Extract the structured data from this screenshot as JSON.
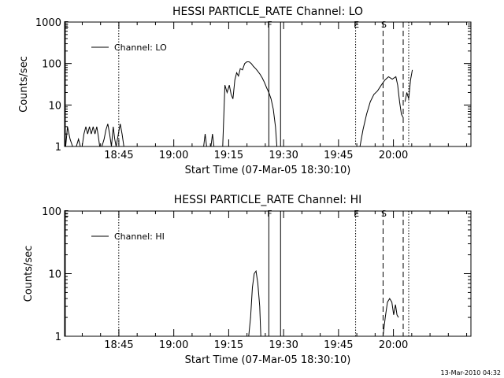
{
  "footer": {
    "timestamp": "13-Mar-2010 04:32"
  },
  "chart_data": [
    {
      "type": "line",
      "title": "HESSI PARTICLE_RATE Channel: LO",
      "xlabel": "Start Time (07-Mar-05 18:30:10)",
      "ylabel": "Counts/sec",
      "x_unit": "minutes after 18:30:10",
      "xlim": [
        0,
        111
      ],
      "ylim": [
        1,
        1000
      ],
      "y_scale": "log",
      "grid": false,
      "legend_position": "top-left",
      "xticks": [
        {
          "x": 14.83,
          "label": "18:45"
        },
        {
          "x": 29.83,
          "label": "19:00"
        },
        {
          "x": 44.83,
          "label": "19:15"
        },
        {
          "x": 59.83,
          "label": "19:30"
        },
        {
          "x": 74.83,
          "label": "19:45"
        },
        {
          "x": 89.83,
          "label": "20:00"
        }
      ],
      "yticks": [
        {
          "y": 1,
          "label": "1"
        },
        {
          "y": 10,
          "label": "10"
        },
        {
          "y": 100,
          "label": "100"
        },
        {
          "y": 1000,
          "label": "1000"
        }
      ],
      "events": [
        {
          "x": 0.2,
          "style": "solid",
          "label": "E"
        },
        {
          "x": 14.8,
          "style": "dotted",
          "label": ""
        },
        {
          "x": 55.8,
          "style": "solid",
          "label": "F"
        },
        {
          "x": 59.0,
          "style": "solid",
          "label": ""
        },
        {
          "x": 79.5,
          "style": "dotted",
          "label": "E"
        },
        {
          "x": 87.0,
          "style": "dashed",
          "label": "S"
        },
        {
          "x": 92.5,
          "style": "dashed",
          "label": ""
        },
        {
          "x": 94.0,
          "style": "dotted",
          "label": ""
        }
      ],
      "series": [
        {
          "name": "Channel: LO",
          "segments": [
            [
              [
                0.3,
                1
              ],
              [
                0.8,
                3
              ],
              [
                1.5,
                1.5
              ],
              [
                2.2,
                1
              ],
              [
                3.2,
                1
              ],
              [
                3.8,
                1.5
              ],
              [
                4.3,
                1
              ],
              [
                4.8,
                1
              ],
              [
                5.3,
                2
              ],
              [
                5.8,
                3
              ],
              [
                6.3,
                2
              ],
              [
                6.8,
                3
              ],
              [
                7.3,
                2
              ],
              [
                7.8,
                3
              ],
              [
                8.3,
                2
              ],
              [
                8.8,
                3
              ],
              [
                9.2,
                1.8
              ],
              [
                9.6,
                1
              ],
              [
                10.2,
                1
              ],
              [
                10.8,
                1.5
              ],
              [
                11.3,
                2.5
              ],
              [
                11.8,
                3.5
              ],
              [
                12.3,
                2
              ],
              [
                12.8,
                1
              ],
              [
                13.3,
                3
              ],
              [
                13.7,
                1.5
              ],
              [
                14.1,
                1
              ],
              [
                14.7,
                2
              ],
              [
                15.2,
                3.5
              ],
              [
                15.7,
                2
              ],
              [
                16.2,
                1
              ]
            ],
            [
              [
                38.0,
                1
              ],
              [
                38.4,
                2
              ],
              [
                38.8,
                1
              ]
            ],
            [
              [
                40.0,
                1
              ],
              [
                40.4,
                2
              ],
              [
                40.8,
                1
              ]
            ],
            [
              [
                43.2,
                1
              ],
              [
                43.8,
                30
              ],
              [
                44.4,
                20
              ],
              [
                45.0,
                30
              ],
              [
                45.5,
                18
              ],
              [
                46.0,
                14
              ],
              [
                46.5,
                40
              ],
              [
                47.0,
                60
              ],
              [
                47.5,
                50
              ],
              [
                48.0,
                75
              ],
              [
                48.6,
                70
              ],
              [
                49.2,
                100
              ],
              [
                49.8,
                110
              ],
              [
                50.4,
                110
              ],
              [
                51.0,
                100
              ],
              [
                51.6,
                85
              ],
              [
                52.2,
                75
              ],
              [
                52.8,
                65
              ],
              [
                53.4,
                55
              ],
              [
                54.0,
                45
              ],
              [
                54.6,
                35
              ],
              [
                55.2,
                26
              ],
              [
                55.8,
                20
              ],
              [
                56.4,
                14
              ],
              [
                57.0,
                8
              ],
              [
                57.6,
                3
              ],
              [
                58.0,
                1
              ]
            ],
            [
              [
                80.7,
                1
              ],
              [
                81.5,
                2.5
              ],
              [
                82.5,
                6
              ],
              [
                83.5,
                12
              ],
              [
                84.5,
                18
              ],
              [
                85.5,
                22
              ],
              [
                86.5,
                30
              ],
              [
                87.5,
                40
              ],
              [
                88.5,
                48
              ],
              [
                89.5,
                42
              ],
              [
                90.5,
                48
              ],
              [
                91.0,
                30
              ],
              [
                91.5,
                12
              ],
              [
                92.0,
                6
              ],
              [
                92.5,
                5
              ]
            ],
            [
              [
                93.0,
                12
              ],
              [
                93.5,
                20
              ],
              [
                94.0,
                14
              ],
              [
                94.5,
                40
              ],
              [
                95.0,
                70
              ]
            ]
          ]
        }
      ]
    },
    {
      "type": "line",
      "title": "HESSI PARTICLE_RATE Channel: HI",
      "xlabel": "Start Time (07-Mar-05 18:30:10)",
      "ylabel": "Counts/sec",
      "x_unit": "minutes after 18:30:10",
      "xlim": [
        0,
        111
      ],
      "ylim": [
        1,
        100
      ],
      "y_scale": "log",
      "grid": false,
      "legend_position": "top-left",
      "xticks": [
        {
          "x": 14.83,
          "label": "18:45"
        },
        {
          "x": 29.83,
          "label": "19:00"
        },
        {
          "x": 44.83,
          "label": "19:15"
        },
        {
          "x": 59.83,
          "label": "19:30"
        },
        {
          "x": 74.83,
          "label": "19:45"
        },
        {
          "x": 89.83,
          "label": "20:00"
        }
      ],
      "yticks": [
        {
          "y": 1,
          "label": "1"
        },
        {
          "y": 10,
          "label": "10"
        },
        {
          "y": 100,
          "label": "100"
        }
      ],
      "events": [
        {
          "x": 0.2,
          "style": "solid",
          "label": "E"
        },
        {
          "x": 14.8,
          "style": "dotted",
          "label": ""
        },
        {
          "x": 55.8,
          "style": "solid",
          "label": "F"
        },
        {
          "x": 59.0,
          "style": "solid",
          "label": ""
        },
        {
          "x": 79.5,
          "style": "dotted",
          "label": "E"
        },
        {
          "x": 87.0,
          "style": "dashed",
          "label": "S"
        },
        {
          "x": 92.5,
          "style": "dashed",
          "label": ""
        },
        {
          "x": 94.0,
          "style": "dotted",
          "label": ""
        }
      ],
      "series": [
        {
          "name": "Channel: HI",
          "segments": [
            [
              [
                50.3,
                1
              ],
              [
                50.8,
                2
              ],
              [
                51.3,
                6
              ],
              [
                51.8,
                10
              ],
              [
                52.3,
                11
              ],
              [
                52.8,
                7
              ],
              [
                53.3,
                3
              ],
              [
                53.6,
                1
              ]
            ],
            [
              [
                87.0,
                1
              ],
              [
                87.6,
                2
              ],
              [
                88.2,
                3.5
              ],
              [
                88.8,
                4
              ],
              [
                89.4,
                3.5
              ],
              [
                89.9,
                2.2
              ],
              [
                90.4,
                3.2
              ],
              [
                90.8,
                2.2
              ],
              [
                91.2,
                2
              ]
            ]
          ]
        }
      ]
    }
  ]
}
